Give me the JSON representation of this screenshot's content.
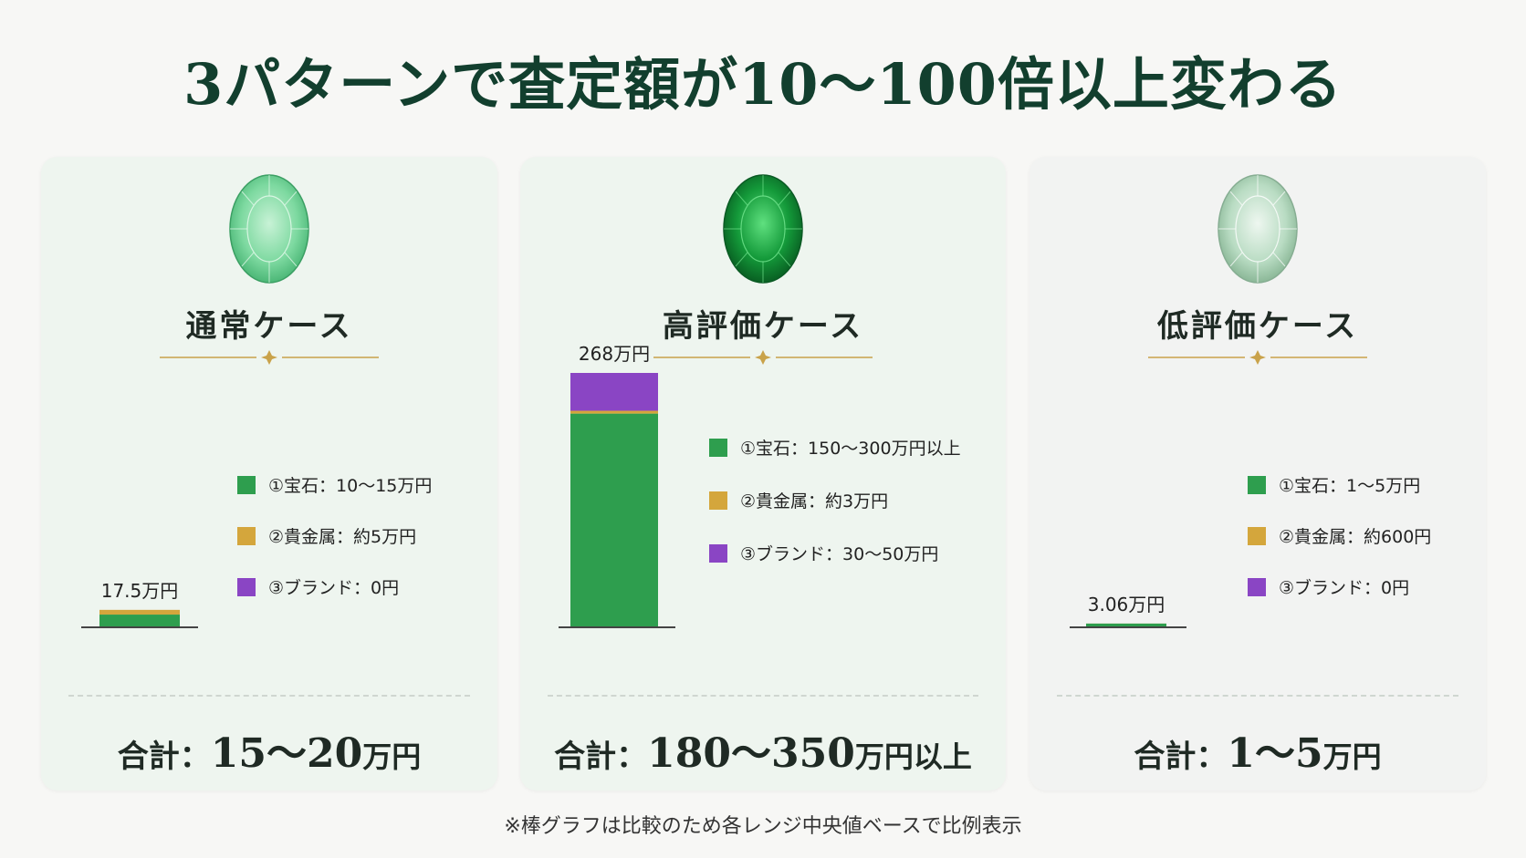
{
  "title": "3パターンで査定額が10〜100倍以上変わる",
  "colors": {
    "gem_stone": "#2e9e4e",
    "precious_metal": "#d4a63c",
    "brand": "#8a45c4",
    "title": "#123f2e"
  },
  "cases": [
    {
      "title": "通常ケース",
      "gem_icon": "light-green-gem-icon",
      "total_label": "合計：",
      "total_value": "15〜20",
      "total_unit": "万円",
      "bar_label": "17.5万円"
    },
    {
      "title": "高評価ケース",
      "gem_icon": "deep-green-gem-icon",
      "total_label": "合計：",
      "total_value": "180〜350",
      "total_unit": "万円以上",
      "bar_label": "268万円"
    },
    {
      "title": "低評価ケース",
      "gem_icon": "pale-green-gem-icon",
      "total_label": "合計：",
      "total_value": "1〜5",
      "total_unit": "万円",
      "bar_label": "3.06万円"
    }
  ],
  "chart_data": [
    {
      "type": "bar",
      "stacked": true,
      "title": "通常ケース",
      "categories": [
        "通常ケース"
      ],
      "total": 17.5,
      "unit": "万円",
      "ylim": [
        0,
        268
      ],
      "series": [
        {
          "name": "①宝石：10〜15万円",
          "values": [
            12.5
          ],
          "color": "#2e9e4e"
        },
        {
          "name": "②貴金属：約5万円",
          "values": [
            5
          ],
          "color": "#d4a63c"
        },
        {
          "name": "③ブランド：0円",
          "values": [
            0
          ],
          "color": "#8a45c4"
        }
      ],
      "legend": "right"
    },
    {
      "type": "bar",
      "stacked": true,
      "title": "高評価ケース",
      "categories": [
        "高評価ケース"
      ],
      "total": 268,
      "unit": "万円",
      "ylim": [
        0,
        268
      ],
      "series": [
        {
          "name": "①宝石：150〜300万円以上",
          "values": [
            225
          ],
          "color": "#2e9e4e"
        },
        {
          "name": "②貴金属：約3万円",
          "values": [
            3
          ],
          "color": "#d4a63c"
        },
        {
          "name": "③ブランド：30〜50万円",
          "values": [
            40
          ],
          "color": "#8a45c4"
        }
      ],
      "legend": "right"
    },
    {
      "type": "bar",
      "stacked": true,
      "title": "低評価ケース",
      "categories": [
        "低評価ケース"
      ],
      "total": 3.06,
      "unit": "万円",
      "ylim": [
        0,
        268
      ],
      "series": [
        {
          "name": "①宝石：1〜5万円",
          "values": [
            3
          ],
          "color": "#2e9e4e"
        },
        {
          "name": "②貴金属：約600円",
          "values": [
            0.06
          ],
          "color": "#d4a63c"
        },
        {
          "name": "③ブランド：0円",
          "values": [
            0
          ],
          "color": "#8a45c4"
        }
      ],
      "legend": "right"
    }
  ],
  "footnote": "※棒グラフは比較のため各レンジ中央値ベースで比例表示"
}
